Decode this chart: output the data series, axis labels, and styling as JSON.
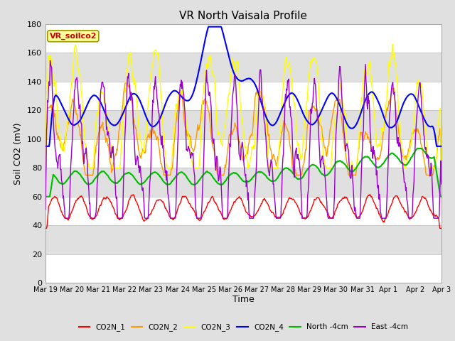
{
  "title": "VR North Vaisala Profile",
  "xlabel": "Time",
  "ylabel": "Soil CO2 (mV)",
  "annotation": "VR_soilco2",
  "ylim": [
    0,
    180
  ],
  "yticks": [
    0,
    20,
    40,
    60,
    80,
    100,
    120,
    140,
    160,
    180
  ],
  "xtick_labels": [
    "Mar 19",
    "Mar 20",
    "Mar 21",
    "Mar 22",
    "Mar 23",
    "Mar 24",
    "Mar 25",
    "Mar 26",
    "Mar 27",
    "Mar 28",
    "Mar 29",
    "Mar 30",
    "Mar 31",
    "Apr 1",
    "Apr 2",
    "Apr 3"
  ],
  "colors": {
    "CO2N_1": "#ff0000",
    "CO2N_2": "#ff9900",
    "CO2N_3": "#ffff00",
    "CO2N_4": "#0000ff",
    "North_4cm": "#00bb00",
    "East_4cm": "#9900cc"
  },
  "background_color": "#e0e0e0",
  "annotation_bg": "#ffff99",
  "annotation_text_color": "#cc0000",
  "annotation_edge_color": "#999900"
}
